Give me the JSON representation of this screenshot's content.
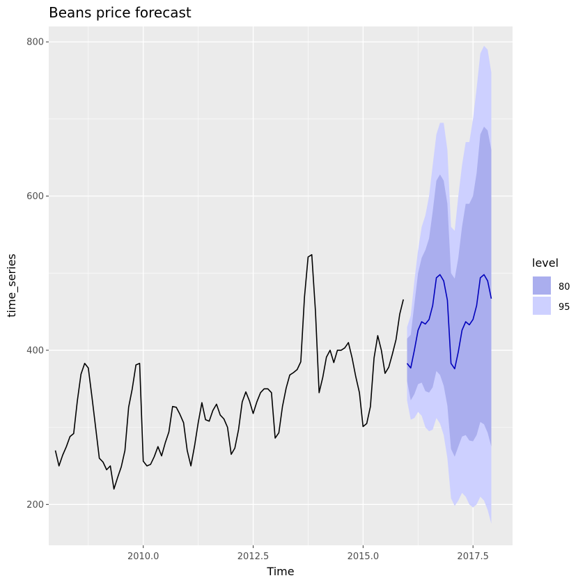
{
  "chart_data": {
    "type": "line",
    "title": "Beans price forecast",
    "xlabel": "Time",
    "ylabel": "time_series",
    "xlim": [
      2007.85,
      2018.4
    ],
    "ylim": [
      147,
      820
    ],
    "x_ticks": [
      2010.0,
      2012.5,
      2015.0,
      2017.5
    ],
    "x_tick_labels": [
      "2010.0",
      "2012.5",
      "2015.0",
      "2017.5"
    ],
    "y_ticks": [
      200,
      400,
      600,
      800
    ],
    "y_tick_labels": [
      "200",
      "400",
      "600",
      "800"
    ],
    "grid": true,
    "legend": {
      "title": "level",
      "placement": "right",
      "entries": [
        {
          "label": "80",
          "color": "#aaaeee"
        },
        {
          "label": "95",
          "color": "#cdd0ff"
        }
      ]
    },
    "colors": {
      "panel": "#ebebeb",
      "grid_major": "#ffffff",
      "history": "#000000",
      "forecast": "#0000bb",
      "band80": "#aaaeee",
      "band95": "#cdd0ff"
    },
    "history": {
      "start": 2008.0,
      "step": 0.08333,
      "values": [
        270,
        250,
        264,
        275,
        288,
        292,
        334,
        369,
        383,
        377,
        339,
        300,
        260,
        255,
        245,
        250,
        220,
        235,
        249,
        270,
        326,
        350,
        381,
        383,
        256,
        250,
        252,
        262,
        275,
        263,
        280,
        294,
        327,
        326,
        317,
        306,
        270,
        250,
        276,
        306,
        332,
        310,
        308,
        322,
        330,
        316,
        311,
        300,
        265,
        273,
        297,
        333,
        346,
        334,
        318,
        333,
        345,
        350,
        350,
        345,
        286,
        293,
        327,
        351,
        368,
        371,
        375,
        385,
        469,
        521,
        524,
        450,
        345,
        365,
        391,
        400,
        384,
        400,
        400,
        403,
        410,
        390,
        366,
        345,
        301,
        305,
        327,
        390,
        419,
        400,
        370,
        378,
        395,
        414,
        447,
        466
      ]
    },
    "forecast": {
      "start": 2016.0,
      "step": 0.08333,
      "mean": [
        383,
        377,
        400,
        426,
        437,
        434,
        440,
        458,
        494,
        498,
        490,
        465,
        383,
        376,
        398,
        426,
        437,
        433,
        440,
        458,
        494,
        498,
        490,
        467
      ],
      "lo80": [
        360,
        335,
        343,
        356,
        358,
        347,
        345,
        352,
        373,
        368,
        354,
        328,
        272,
        262,
        275,
        288,
        290,
        283,
        282,
        290,
        307,
        304,
        293,
        275
      ],
      "hi80": [
        415,
        420,
        460,
        500,
        520,
        530,
        545,
        580,
        620,
        628,
        620,
        590,
        500,
        493,
        520,
        560,
        590,
        590,
        600,
        630,
        680,
        690,
        685,
        660
      ],
      "lo95": [
        335,
        310,
        312,
        320,
        315,
        300,
        295,
        297,
        312,
        305,
        290,
        260,
        208,
        198,
        205,
        215,
        210,
        200,
        196,
        200,
        210,
        205,
        193,
        175
      ],
      "hi95": [
        430,
        445,
        490,
        530,
        560,
        575,
        600,
        640,
        680,
        695,
        695,
        660,
        560,
        555,
        600,
        640,
        670,
        670,
        700,
        740,
        785,
        795,
        790,
        760
      ]
    }
  }
}
